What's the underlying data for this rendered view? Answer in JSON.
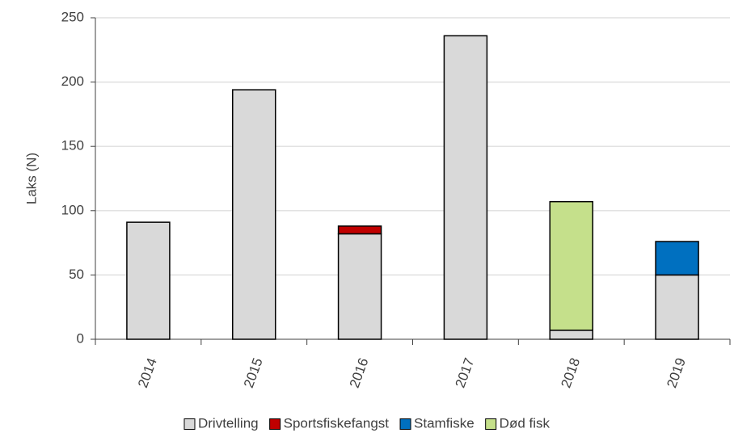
{
  "chart_data": {
    "type": "stacked_bar",
    "ylabel": "Laks (N)",
    "categories": [
      "2014",
      "2015",
      "2016",
      "2017",
      "2018",
      "2019"
    ],
    "series": [
      {
        "name": "Drivtelling",
        "color": "#d9d9d9",
        "values": [
          91,
          194,
          82,
          236,
          7,
          50
        ]
      },
      {
        "name": "Sportsfiskefangst",
        "color": "#c00000",
        "values": [
          0,
          0,
          6,
          0,
          0,
          0
        ]
      },
      {
        "name": "Stamfiske",
        "color": "#0070c0",
        "values": [
          0,
          0,
          0,
          0,
          0,
          26
        ]
      },
      {
        "name": "Død fisk",
        "color": "#c5e08b",
        "values": [
          0,
          0,
          0,
          0,
          100,
          0
        ]
      }
    ],
    "ylim": [
      0,
      250
    ],
    "yticks": [
      0,
      50,
      100,
      150,
      200,
      250
    ],
    "grid": true,
    "legend": "bottom"
  }
}
